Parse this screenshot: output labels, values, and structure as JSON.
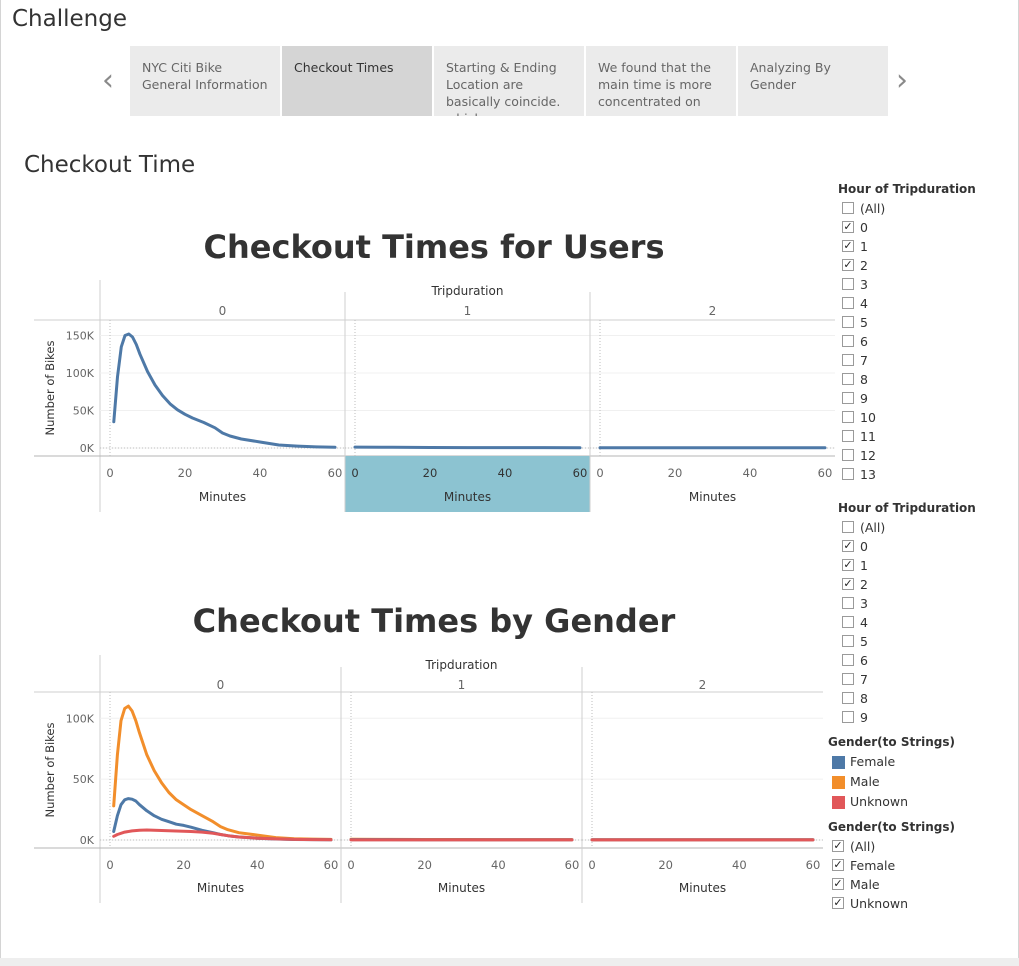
{
  "page": {
    "title": "Challenge",
    "section_title": "Checkout Time",
    "nav": {
      "prev_icon": "‹",
      "next_icon": "›",
      "points": [
        {
          "label": "NYC Citi Bike General Information"
        },
        {
          "label": "Checkout Times",
          "active": true
        },
        {
          "label": "Starting & Ending Location are basically coincide. which"
        },
        {
          "label": "We found that the main time is more concentrated on"
        },
        {
          "label": "Analyzing By Gender"
        }
      ]
    }
  },
  "chart_data": [
    {
      "type": "line",
      "title": "Checkout Times for Users",
      "column_header": "Tripduration",
      "panels": [
        "0",
        "1",
        "2"
      ],
      "highlighted_panel": "1",
      "xlabel": "Minutes",
      "ylabel": "Number of Bikes",
      "xlim": [
        0,
        60
      ],
      "x_ticks": [
        "0",
        "20",
        "40",
        "60"
      ],
      "ylim": [
        0,
        160000
      ],
      "y_ticks": [
        {
          "value": 0,
          "label": "0K"
        },
        {
          "value": 50000,
          "label": "50K"
        },
        {
          "value": 100000,
          "label": "100K"
        },
        {
          "value": 150000,
          "label": "150K"
        }
      ],
      "series": [
        {
          "color": "#4e79a7",
          "panel_values": [
            {
              "x": [
                1,
                2,
                3,
                4,
                5,
                6,
                7,
                8,
                10,
                12,
                14,
                16,
                18,
                20,
                22,
                25,
                28,
                30,
                32,
                35,
                40,
                45,
                50,
                55,
                60
              ],
              "y": [
                35000,
                95000,
                135000,
                150000,
                152000,
                148000,
                138000,
                125000,
                102000,
                84000,
                70000,
                59000,
                51000,
                45000,
                40000,
                34000,
                27000,
                20000,
                16000,
                12000,
                8000,
                4000,
                2500,
                1500,
                1000
              ]
            },
            {
              "x": [
                0,
                10,
                20,
                30,
                40,
                50,
                60
              ],
              "y": [
                1200,
                900,
                700,
                600,
                500,
                500,
                400
              ]
            },
            {
              "x": [
                0,
                10,
                20,
                30,
                40,
                50,
                60
              ],
              "y": [
                400,
                400,
                400,
                400,
                400,
                400,
                400
              ]
            }
          ]
        }
      ]
    },
    {
      "type": "line",
      "title": "Checkout Times by Gender",
      "column_header": "Tripduration",
      "panels": [
        "0",
        "1",
        "2"
      ],
      "xlabel": "Minutes",
      "ylabel": "Number of Bikes",
      "xlim": [
        0,
        60
      ],
      "x_ticks": [
        "0",
        "20",
        "40",
        "60"
      ],
      "ylim": [
        0,
        115000
      ],
      "y_ticks": [
        {
          "value": 0,
          "label": "0K"
        },
        {
          "value": 50000,
          "label": "50K"
        },
        {
          "value": 100000,
          "label": "100K"
        }
      ],
      "series": [
        {
          "name": "Male",
          "color": "#f28e2b",
          "panel_values": [
            {
              "x": [
                1,
                2,
                3,
                4,
                5,
                6,
                7,
                8,
                10,
                12,
                14,
                16,
                18,
                20,
                22,
                25,
                28,
                30,
                32,
                35,
                40,
                45,
                50,
                55,
                60
              ],
              "y": [
                28000,
                70000,
                98000,
                108000,
                110000,
                106000,
                98000,
                88000,
                70000,
                57000,
                47000,
                39000,
                33000,
                29000,
                25000,
                20000,
                15000,
                11000,
                8500,
                6000,
                4000,
                2000,
                1000,
                700,
                500
              ]
            },
            {
              "x": [
                0,
                10,
                20,
                30,
                40,
                50,
                60
              ],
              "y": [
                600,
                500,
                400,
                400,
                300,
                300,
                300
              ]
            },
            {
              "x": [
                0,
                10,
                20,
                30,
                40,
                50,
                60
              ],
              "y": [
                200,
                200,
                200,
                200,
                200,
                200,
                200
              ]
            }
          ]
        },
        {
          "name": "Female",
          "color": "#4e79a7",
          "panel_values": [
            {
              "x": [
                1,
                2,
                3,
                4,
                5,
                6,
                7,
                8,
                10,
                12,
                14,
                16,
                18,
                20,
                22,
                25,
                28,
                30,
                32,
                35,
                40,
                45,
                50,
                55,
                60
              ],
              "y": [
                7000,
                20000,
                29000,
                33000,
                34000,
                33500,
                32000,
                29000,
                24000,
                20000,
                17000,
                15000,
                13000,
                12000,
                10500,
                8000,
                6000,
                4500,
                3500,
                2500,
                1500,
                800,
                400,
                300,
                200
              ]
            },
            {
              "x": [
                0,
                10,
                20,
                30,
                40,
                50,
                60
              ],
              "y": [
                300,
                300,
                200,
                200,
                200,
                200,
                200
              ]
            },
            {
              "x": [
                0,
                10,
                20,
                30,
                40,
                50,
                60
              ],
              "y": [
                150,
                150,
                150,
                150,
                150,
                150,
                150
              ]
            }
          ]
        },
        {
          "name": "Unknown",
          "color": "#e15759",
          "panel_values": [
            {
              "x": [
                1,
                2,
                4,
                6,
                8,
                10,
                12,
                14,
                16,
                18,
                20,
                22,
                25,
                28,
                30,
                32,
                35,
                40,
                45,
                50,
                55,
                60
              ],
              "y": [
                3000,
                4500,
                6500,
                7500,
                8000,
                8200,
                8000,
                7800,
                7600,
                7400,
                7200,
                7000,
                6500,
                5500,
                4500,
                3500,
                2500,
                1500,
                900,
                500,
                300,
                200
              ]
            },
            {
              "x": [
                0,
                10,
                20,
                30,
                40,
                50,
                60
              ],
              "y": [
                100,
                100,
                100,
                100,
                100,
                100,
                100
              ]
            },
            {
              "x": [
                0,
                10,
                20,
                30,
                40,
                50,
                60
              ],
              "y": [
                100,
                100,
                100,
                100,
                100,
                100,
                100
              ]
            }
          ]
        }
      ]
    }
  ],
  "filters": {
    "hour_1": {
      "title": "Hour of Tripduration",
      "items": [
        {
          "label": "(All)",
          "checked": false
        },
        {
          "label": "0",
          "checked": true
        },
        {
          "label": "1",
          "checked": true
        },
        {
          "label": "2",
          "checked": true
        },
        {
          "label": "3",
          "checked": false
        },
        {
          "label": "4",
          "checked": false
        },
        {
          "label": "5",
          "checked": false
        },
        {
          "label": "6",
          "checked": false
        },
        {
          "label": "7",
          "checked": false
        },
        {
          "label": "8",
          "checked": false
        },
        {
          "label": "9",
          "checked": false
        },
        {
          "label": "10",
          "checked": false
        },
        {
          "label": "11",
          "checked": false
        },
        {
          "label": "12",
          "checked": false
        },
        {
          "label": "13",
          "checked": false
        }
      ]
    },
    "hour_2": {
      "title": "Hour of Tripduration",
      "items": [
        {
          "label": "(All)",
          "checked": false
        },
        {
          "label": "0",
          "checked": true
        },
        {
          "label": "1",
          "checked": true
        },
        {
          "label": "2",
          "checked": true
        },
        {
          "label": "3",
          "checked": false
        },
        {
          "label": "4",
          "checked": false
        },
        {
          "label": "5",
          "checked": false
        },
        {
          "label": "6",
          "checked": false
        },
        {
          "label": "7",
          "checked": false
        },
        {
          "label": "8",
          "checked": false
        },
        {
          "label": "9",
          "checked": false
        }
      ]
    },
    "gender_legend": {
      "title": "Gender(to Strings)",
      "items": [
        {
          "label": "Female",
          "color": "#4e79a7"
        },
        {
          "label": "Male",
          "color": "#f28e2b"
        },
        {
          "label": "Unknown",
          "color": "#e15759"
        }
      ]
    },
    "gender_filter": {
      "title": "Gender(to Strings)",
      "items": [
        {
          "label": "(All)",
          "checked": true
        },
        {
          "label": "Female",
          "checked": true
        },
        {
          "label": "Male",
          "checked": true
        },
        {
          "label": "Unknown",
          "checked": true
        }
      ]
    }
  }
}
